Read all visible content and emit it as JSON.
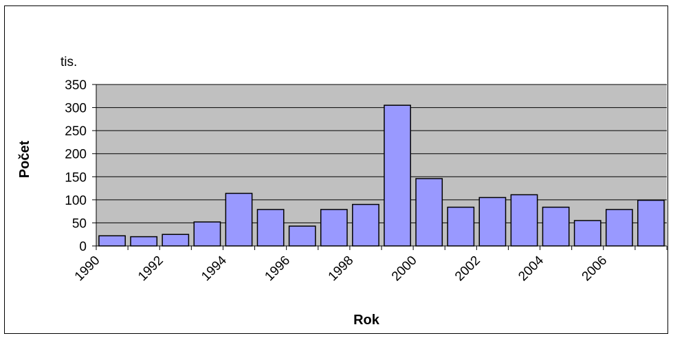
{
  "chart_data": {
    "type": "bar",
    "unit_label": "tis.",
    "xlabel": "Rok",
    "ylabel": "Počet",
    "ylim": [
      0,
      350
    ],
    "yticks": [
      0,
      50,
      100,
      150,
      200,
      250,
      300,
      350
    ],
    "grid": true,
    "categories": [
      "1990",
      "1991",
      "1992",
      "1993",
      "1994",
      "1995",
      "1996",
      "1997",
      "1998",
      "1999",
      "2000",
      "2001",
      "2002",
      "2003",
      "2004",
      "2005",
      "2006",
      "2007"
    ],
    "tick_labels": [
      "1990",
      "1992",
      "1994",
      "1996",
      "1998",
      "2000",
      "2002",
      "2004",
      "2006"
    ],
    "values": [
      22,
      20,
      25,
      52,
      114,
      79,
      43,
      79,
      90,
      305,
      146,
      84,
      105,
      111,
      84,
      55,
      79,
      99
    ],
    "colors": {
      "bar": "#9999ff",
      "plot_bg": "#c0c0c0",
      "grid": "#000000"
    }
  }
}
